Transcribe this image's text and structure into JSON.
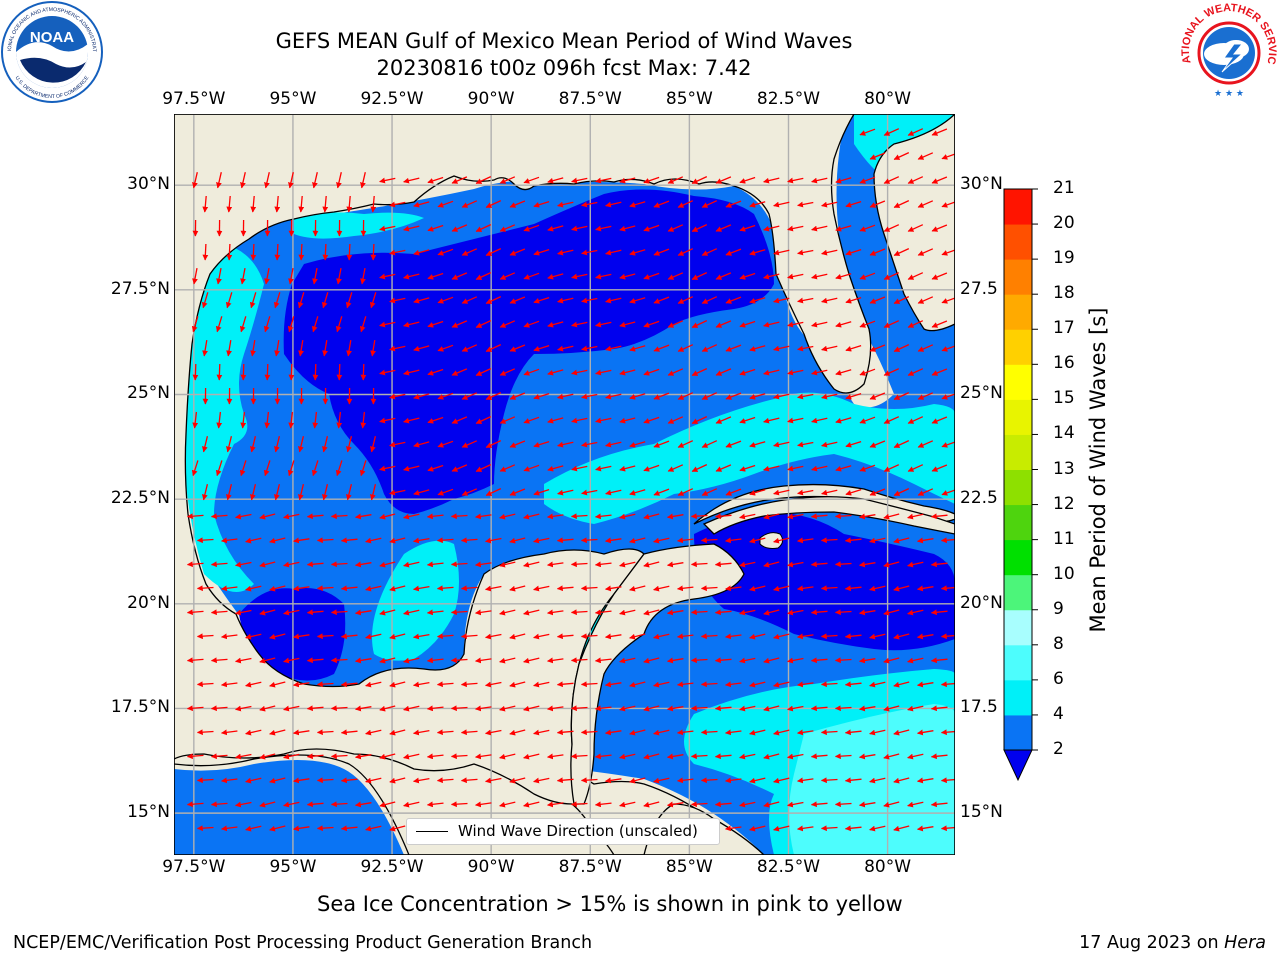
{
  "header": {
    "title_line1": "GEFS MEAN Gulf of Mexico Mean Period of Wind Waves",
    "title_line2": "20230816 t00z 096h fcst   Max: 7.42"
  },
  "logos": {
    "left": {
      "name": "noaa-logo",
      "text": "NOAA",
      "ring_text": "NATIONAL OCEANIC AND ATMOSPHERIC ADMINISTRATION",
      "ring_bottom": "U.S. DEPARTMENT OF COMMERCE",
      "colors": {
        "blue": "#1560bd",
        "navy": "#0a2a6e"
      }
    },
    "right": {
      "name": "nws-logo",
      "ring_text": "NATIONAL WEATHER SERVICE",
      "colors": {
        "red": "#e8141e",
        "blue": "#1a6fd1"
      }
    }
  },
  "map": {
    "region": "Gulf of Mexico",
    "lon_range": [
      -98.0,
      -78.3
    ],
    "lat_range": [
      14.0,
      31.7
    ],
    "lon_ticks": [
      {
        "value": -97.5,
        "label": "97.5°W"
      },
      {
        "value": -95.0,
        "label": "95°W"
      },
      {
        "value": -92.5,
        "label": "92.5°W"
      },
      {
        "value": -90.0,
        "label": "90°W"
      },
      {
        "value": -87.5,
        "label": "87.5°W"
      },
      {
        "value": -85.0,
        "label": "85°W"
      },
      {
        "value": -82.5,
        "label": "82.5°W"
      },
      {
        "value": -80.0,
        "label": "80°W"
      }
    ],
    "lat_ticks_left": [
      {
        "value": 30.0,
        "label": "30°N"
      },
      {
        "value": 27.5,
        "label": "27.5°N"
      },
      {
        "value": 25.0,
        "label": "25°N"
      },
      {
        "value": 22.5,
        "label": "22.5°N"
      },
      {
        "value": 20.0,
        "label": "20°N"
      },
      {
        "value": 17.5,
        "label": "17.5°N"
      },
      {
        "value": 15.0,
        "label": "15°N"
      }
    ],
    "lat_ticks_right": [
      {
        "value": 30.0,
        "label": "30°N"
      },
      {
        "value": 27.5,
        "label": "27.5"
      },
      {
        "value": 25.0,
        "label": "25°N"
      },
      {
        "value": 22.5,
        "label": "22.5"
      },
      {
        "value": 20.0,
        "label": "20°N"
      },
      {
        "value": 17.5,
        "label": "17.5"
      },
      {
        "value": 15.0,
        "label": "15°N"
      }
    ],
    "grid": true,
    "colors": {
      "land": "#efecdc",
      "coast": "#000000",
      "grid": "#b0b0b0",
      "arrow": "#ff0000",
      "band_2_4": "#0a74f4",
      "band_lt2": "#0000ee",
      "band_4_6": "#00f0f8",
      "band_6_8": "#4dfdfd"
    },
    "wind_direction": "generally westward; north-westward over the western Caribbean",
    "legend_label": "Wind Wave Direction (unscaled)"
  },
  "colorbar": {
    "label": "Mean Period of Wind Waves [s]",
    "extend": "min",
    "under_color": "#0000ee",
    "levels": [
      2,
      4,
      6,
      8,
      9,
      10,
      11,
      12,
      13,
      14,
      15,
      16,
      17,
      18,
      19,
      20,
      21
    ],
    "colors": [
      "#0a74f4",
      "#00f0f8",
      "#4dfdfd",
      "#a8fefe",
      "#4cf57a",
      "#00e000",
      "#4ed40e",
      "#8ee000",
      "#c8ec00",
      "#e8f400",
      "#ffff00",
      "#ffd000",
      "#ffaa00",
      "#ff8000",
      "#ff5000",
      "#ff1400"
    ]
  },
  "note": "Sea Ice Concentration > 15% is shown in pink to yellow",
  "footer": {
    "left": "NCEP/EMC/Verification Post Processing Product Generation Branch",
    "date": "17 Aug 2023 on ",
    "host": "Hera"
  }
}
